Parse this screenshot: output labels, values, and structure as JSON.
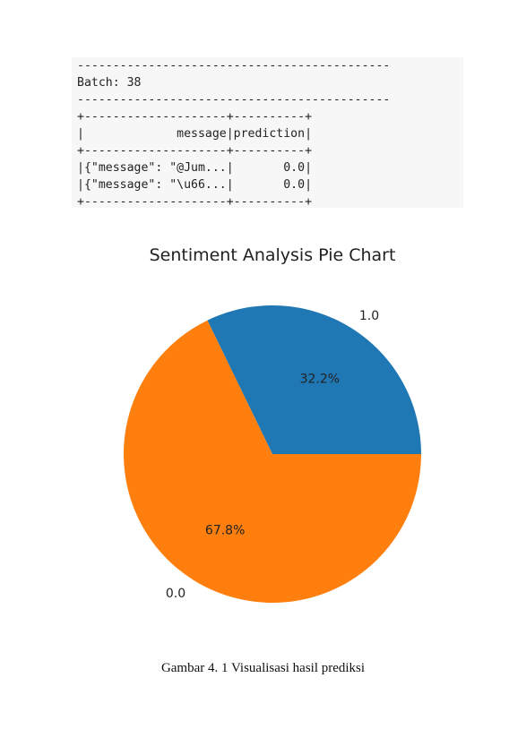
{
  "console": {
    "lines": [
      "--------------------------------------------",
      "Batch: 38",
      "--------------------------------------------",
      "+--------------------+----------+",
      "|             message|prediction|",
      "+--------------------+----------+",
      "|{\"message\": \"@Jum...|       0.0|",
      "|{\"message\": \"\\u66...|       0.0|",
      "+--------------------+----------+"
    ]
  },
  "chart_data": {
    "type": "pie",
    "title": "Sentiment Analysis Pie Chart",
    "labels": [
      "1.0",
      "0.0"
    ],
    "values": [
      32.2,
      67.8
    ],
    "value_labels": [
      "32.2%",
      "67.8%"
    ],
    "colors": [
      "#1f77b4",
      "#ff7f0e"
    ],
    "start_angle_deg": 0,
    "direction": "counterclockwise"
  },
  "caption": "Gambar 4. 1 Visualisasi hasil prediksi"
}
